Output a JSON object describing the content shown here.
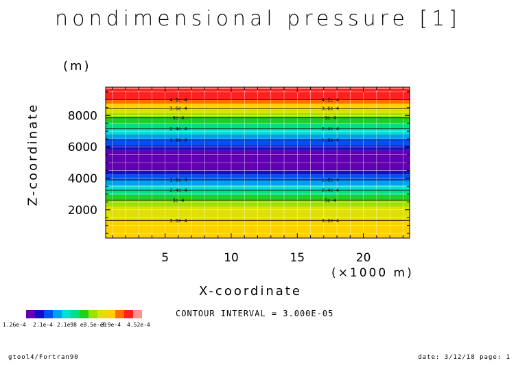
{
  "title": "nondimensional pressure [1]",
  "footer": {
    "left": "gtool4/Fortran90",
    "right": "date: 3/12/18 page: 1"
  },
  "contour_interval": "CONTOUR INTERVAL = 3.000E-05",
  "colors": {
    "bands": [
      "#6000b0",
      "#1010c0",
      "#0050f0",
      "#00a0f0",
      "#00e0d0",
      "#00e080",
      "#20d020",
      "#a0e000",
      "#e0e000",
      "#ffd000",
      "#ff7000",
      "#ff2020",
      "#ff9090"
    ]
  },
  "chart_data": {
    "type": "heatmap",
    "title": "nondimensional pressure [1]",
    "xlabel": "X-coordinate",
    "xunit": "(×1000 m)",
    "ylabel": "Z-coordinate",
    "yunit": "(m)",
    "xlim": [
      0.5,
      23.5
    ],
    "ylim": [
      200,
      9800
    ],
    "xticks": [
      5,
      10,
      15,
      20
    ],
    "xtick_labels": [
      "5",
      "10",
      "15",
      "20"
    ],
    "yticks": [
      2000,
      4000,
      6000,
      8000
    ],
    "ytick_labels": [
      "2000",
      "4000",
      "6000",
      "8000"
    ],
    "bands": [
      {
        "z0": 200,
        "z1": 1320,
        "color": "#ffd000"
      },
      {
        "z0": 1320,
        "z1": 2200,
        "color": "#e0e000"
      },
      {
        "z0": 2200,
        "z1": 2600,
        "color": "#a0e000"
      },
      {
        "z0": 2600,
        "z1": 2950,
        "color": "#20d020"
      },
      {
        "z0": 2950,
        "z1": 3250,
        "color": "#00e080"
      },
      {
        "z0": 3250,
        "z1": 3550,
        "color": "#00e0d0"
      },
      {
        "z0": 3550,
        "z1": 3900,
        "color": "#00a0f0"
      },
      {
        "z0": 3900,
        "z1": 4250,
        "color": "#0050f0"
      },
      {
        "z0": 4250,
        "z1": 4500,
        "color": "#1010c0"
      },
      {
        "z0": 4500,
        "z1": 5800,
        "color": "#6000b0"
      },
      {
        "z0": 5800,
        "z1": 6100,
        "color": "#1010c0"
      },
      {
        "z0": 6100,
        "z1": 6450,
        "color": "#0050f0"
      },
      {
        "z0": 6450,
        "z1": 6800,
        "color": "#00a0f0"
      },
      {
        "z0": 6800,
        "z1": 7150,
        "color": "#00e0d0"
      },
      {
        "z0": 7150,
        "z1": 7500,
        "color": "#00e080"
      },
      {
        "z0": 7500,
        "z1": 7850,
        "color": "#20d020"
      },
      {
        "z0": 7850,
        "z1": 8150,
        "color": "#a0e000"
      },
      {
        "z0": 8150,
        "z1": 8450,
        "color": "#e0e000"
      },
      {
        "z0": 8450,
        "z1": 8750,
        "color": "#ffd000"
      },
      {
        "z0": 8750,
        "z1": 9000,
        "color": "#ff7000"
      },
      {
        "z0": 9000,
        "z1": 9700,
        "color": "#ff2020"
      },
      {
        "z0": 9700,
        "z1": 9800,
        "color": "#ff9090"
      }
    ],
    "contour_lines": [
      {
        "z": 1320,
        "label": "3.6e-4"
      },
      {
        "z": 2600,
        "label": "3e-4"
      },
      {
        "z": 3250,
        "label": "2.4e-4"
      },
      {
        "z": 3900,
        "label": "1.8e-4"
      },
      {
        "z": 6450,
        "label": "1.8e-4"
      },
      {
        "z": 7150,
        "label": "2.4e-4"
      },
      {
        "z": 7850,
        "label": "3e-4"
      },
      {
        "z": 8450,
        "label": "3.6e-4"
      },
      {
        "z": 9000,
        "label": "4.2e-4"
      }
    ],
    "contour_label_x": [
      6,
      17.5
    ],
    "colorbar": {
      "colors": [
        "#6000b0",
        "#1010c0",
        "#0050f0",
        "#00a0f0",
        "#00e0d0",
        "#00e080",
        "#20d020",
        "#a0e000",
        "#e0e000",
        "#ffd000",
        "#ff7000",
        "#ff2020",
        "#ff9090"
      ],
      "labels": [
        "1.26e-4",
        "2.1e-4",
        "3.9e-4",
        "4.52e-4"
      ],
      "overlap_text": "2.1e98 e8.5e-e9"
    }
  }
}
